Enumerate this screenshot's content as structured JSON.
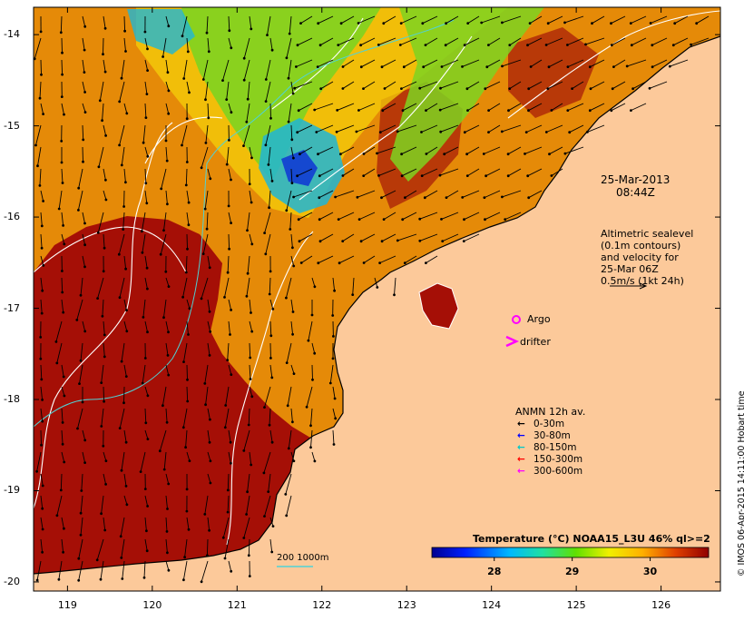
{
  "map": {
    "lat_ticks": [
      "-14",
      "-15",
      "-16",
      "-17",
      "-18",
      "-19",
      "-20"
    ],
    "lon_ticks": [
      "119",
      "120",
      "121",
      "122",
      "123",
      "124",
      "125",
      "126"
    ],
    "lat_range": [
      -20.1,
      -13.7
    ],
    "lon_range": [
      118.6,
      126.7
    ]
  },
  "annotations": {
    "datetime_line1": "25-Mar-2013",
    "datetime_line2": "08:44Z",
    "altimetry_lines": [
      "Altimetric sealevel",
      "(0.1m contours)",
      "and velocity for",
      "25-Mar 06Z",
      "0.5m/s (1kt 24h)"
    ],
    "argo_label": "Argo",
    "drifter_label": "drifter",
    "isobath_label": "200  1000m"
  },
  "anmn_legend": {
    "title": "ANMN 12h av.",
    "items": [
      {
        "label": "0-30m",
        "color": "#000000"
      },
      {
        "label": "30-80m",
        "color": "#0000ff"
      },
      {
        "label": "80-150m",
        "color": "#00c8c8"
      },
      {
        "label": "150-300m",
        "color": "#ff0000"
      },
      {
        "label": "300-600m",
        "color": "#ff00ff"
      }
    ]
  },
  "colorbar": {
    "title": "Temperature (°C) NOAA15_L3U 46% ql>=2",
    "ticks": [
      "28",
      "29",
      "30"
    ],
    "tick_values": [
      28,
      29,
      30
    ],
    "range": [
      27.2,
      30.75
    ]
  },
  "credit": "© IMOS 06-Apr-2015 14:11:00 Hobart time",
  "colors": {
    "land": "#fcc99a",
    "sea_warm": "#a50f06",
    "sea_orange": "#e58a08",
    "sea_yellow": "#f4cf0a",
    "sea_green": "#7ed321",
    "sea_cyan": "#1fb6d6",
    "sea_blue": "#0b2cd6"
  }
}
